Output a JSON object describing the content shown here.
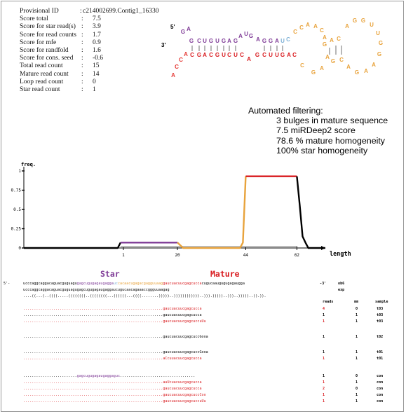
{
  "stats": [
    {
      "label": "Provisional ID",
      "value": "c214002699.Contig1_16330"
    },
    {
      "label": "Score total",
      "value": "7.5"
    },
    {
      "label": "Score for star read(s)",
      "value": "3.9"
    },
    {
      "label": "Score for read counts",
      "value": "1.7"
    },
    {
      "label": "Score for mfe",
      "value": "0.9"
    },
    {
      "label": "Score for randfold",
      "value": "1.6"
    },
    {
      "label": "Score for cons. seed",
      "value": "-0.6"
    },
    {
      "label": "Total read count",
      "value": "15"
    },
    {
      "label": "Mature read count",
      "value": "14"
    },
    {
      "label": "Loop read count",
      "value": "0"
    },
    {
      "label": "Star read count",
      "value": "1"
    }
  ],
  "hairpin": {
    "five_prime": "5'",
    "three_prime": "3'",
    "top_strand": [
      "G",
      "A",
      "G",
      "C",
      "U",
      "G",
      "U",
      "G",
      "A",
      "G",
      "A",
      "U",
      "G",
      "A",
      "G",
      "G",
      "A",
      "U",
      "C"
    ],
    "bottom_strand": [
      "A",
      "C",
      "C",
      "A",
      "C",
      "G",
      "A",
      "C",
      "G",
      "U",
      "C",
      "U",
      "C",
      "A",
      "G",
      "C",
      "U",
      "U",
      "G",
      "A",
      "C"
    ],
    "loop": [
      "C",
      "C",
      "A",
      "A",
      "C",
      "A",
      "G",
      "A",
      "C",
      "A",
      "G",
      "G",
      "U",
      "U",
      "G",
      "G",
      "A",
      "A",
      "G",
      "A",
      "C",
      "G",
      "A",
      "A",
      "G",
      "C"
    ],
    "colors": {
      "star": "#7e3a96",
      "mature": "#d8181c",
      "loop": "#e8a33c",
      "flank": "#e53935",
      "connector": "#7fb1d6",
      "pair": "#333333"
    }
  },
  "filtering": {
    "title": "Automated filtering:",
    "items": [
      "3 bulges in mature sequence",
      "7.5 miRDeep2 score",
      "78.6 % mature homogeneity",
      "100% star homogeneity"
    ]
  },
  "chart_data": {
    "type": "line",
    "ylabel": "freq.",
    "xlabel": "length",
    "yticks": [
      "0",
      "0.25",
      "0.5",
      "0.75",
      "1"
    ],
    "xticks": [
      "1",
      "20",
      "44",
      "62"
    ],
    "ylim": [
      0,
      1
    ],
    "segments": [
      {
        "name": "flank",
        "color": "#000000",
        "points": [
          [
            -34,
            0
          ],
          [
            -1,
            0
          ],
          [
            0,
            0.07
          ]
        ]
      },
      {
        "name": "star",
        "color": "#7e3a96",
        "points": [
          [
            0,
            0.07
          ],
          [
            20,
            0.07
          ]
        ]
      },
      {
        "name": "loop",
        "color": "#e8a33c",
        "points": [
          [
            20,
            0.07
          ],
          [
            22,
            0
          ],
          [
            42,
            0
          ],
          [
            43,
            0.07
          ],
          [
            44,
            0.93
          ]
        ]
      },
      {
        "name": "mature",
        "color": "#d8181c",
        "points": [
          [
            44,
            0.93
          ],
          [
            62,
            0.93
          ]
        ]
      },
      {
        "name": "tail",
        "color": "#000000",
        "points": [
          [
            62,
            0.93
          ],
          [
            63,
            0.55
          ],
          [
            64,
            0.15
          ],
          [
            65,
            0.07
          ],
          [
            66,
            0
          ],
          [
            72,
            0
          ]
        ]
      }
    ]
  },
  "alignment": {
    "star_label": "Star",
    "mature_label": "Mature",
    "prefix": "5'-",
    "suffix": "-3'",
    "ob_label": "ob6",
    "exp_label": "exp",
    "seq_flank5": "ucccaggcaggacaguacguguagu",
    "seq_star": "gagcugugagaugagga",
    "seq_conn": "uc",
    "seq_loop": "cacaacugagacgagguuaag",
    "seq_mature": "gaucuacuucgagcucca",
    "seq_flank3": "cugucaaugugugagaugga",
    "obs": "ucccaggcaggacaguacguguagugagcugugagaugaggaucugucaacagaaaccggguuaagag",
    "struct": "....((...(..((((.....((((((((..((((((((...((((((...((((........)))))..))))))))))))..))).)))))..)))..)))))..)).)).",
    "col_reads": "reads",
    "col_mm": "mm",
    "col_sample": "sample",
    "reads": [
      {
        "dots_before": 0,
        "seq": "gaucuacuucgagcucca",
        "count": "4",
        "mm": "0",
        "sample": "t03",
        "red": true
      },
      {
        "dots_before": 0,
        "seq": "gaucuacuucgagcucca",
        "count": "1",
        "mm": "1",
        "sample": "t03",
        "red": false
      },
      {
        "dots_before": 0,
        "seq": "gaucuacuucgagcuccuUu",
        "count": "1",
        "mm": "1",
        "sample": "t03",
        "red": true
      },
      {
        "dots_before": 0,
        "seq": "gaucuacuucgagcuccGooa",
        "count": "1",
        "mm": "1",
        "sample": "t02",
        "red": false
      },
      {
        "dots_before": 0,
        "seq": "gaucuacuucgagcuccGooa",
        "count": "1",
        "mm": "1",
        "sample": "t01",
        "red": false
      },
      {
        "dots_before": 0,
        "seq": "aCcuuacuucgagcucca",
        "count": "1",
        "mm": "1",
        "sample": "t01",
        "red": true
      },
      {
        "dots_before": 0,
        "seq": "gagcugugagaugaggaguc",
        "count": "1",
        "mm": "0",
        "sample": "con",
        "red": false,
        "star": true
      },
      {
        "dots_before": 0,
        "seq": "auUcuacuucgagcucca",
        "count": "1",
        "mm": "1",
        "sample": "con",
        "red": true
      },
      {
        "dots_before": 0,
        "seq": "gaucuacuucgagcucca",
        "count": "2",
        "mm": "0",
        "sample": "con",
        "red": true
      },
      {
        "dots_before": 0,
        "seq": "gaucuacuucgagcuccCoo",
        "count": "1",
        "mm": "1",
        "sample": "con",
        "red": true
      },
      {
        "dots_before": 0,
        "seq": "gaucuacuucgagcuccuUu",
        "count": "1",
        "mm": "1",
        "sample": "con",
        "red": true
      }
    ]
  }
}
